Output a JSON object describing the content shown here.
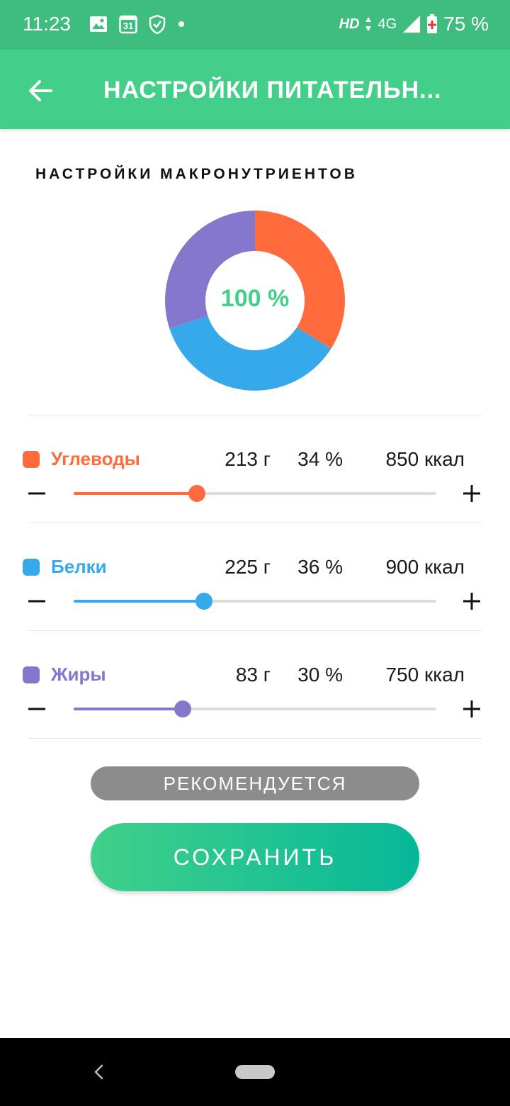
{
  "status_bar": {
    "time": "11:23",
    "calendar_day": "31",
    "hd": "HD",
    "network": "4G",
    "battery": "75 %"
  },
  "app_bar": {
    "title": "НАСТРОЙКИ ПИТАТЕЛЬН...",
    "back_icon": "arrow-left-icon"
  },
  "section_title": "НАСТРОЙКИ МАКРОНУТРИЕНТОВ",
  "chart_data": {
    "type": "pie",
    "center_label": "100 %",
    "categories": [
      "Углеводы",
      "Белки",
      "Жиры"
    ],
    "values": [
      34,
      36,
      30
    ],
    "colors": [
      "#FF6B3D",
      "#36A9EA",
      "#8577CB"
    ]
  },
  "macros": [
    {
      "name": "Углеводы",
      "grams": "213 г",
      "percent": "34 %",
      "kcal": "850 ккал",
      "color": "#FF6B3D",
      "slider_fraction": 0.34
    },
    {
      "name": "Белки",
      "grams": "225 г",
      "percent": "36 %",
      "kcal": "900 ккал",
      "color": "#36A9EA",
      "slider_fraction": 0.36
    },
    {
      "name": "Жиры",
      "grams": "83 г",
      "percent": "30 %",
      "kcal": "750 ккал",
      "color": "#8577CB",
      "slider_fraction": 0.3
    }
  ],
  "buttons": {
    "recommend": "РЕКОМЕНДУЕТСЯ",
    "save": "СОХРАНИТЬ"
  },
  "colors": {
    "status_bar": "#3FBD7F",
    "app_bar": "#43CF8A",
    "accent": "#43CF8A"
  }
}
